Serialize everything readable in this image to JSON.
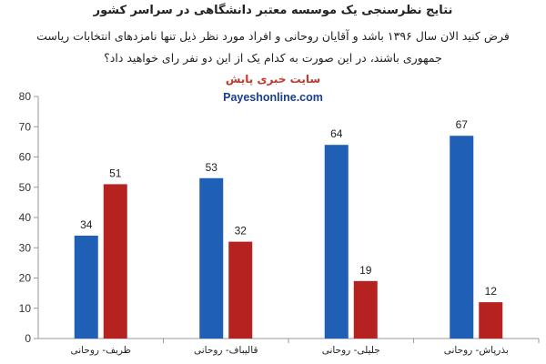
{
  "header": {
    "title": "نتایج نظرسنجی یک موسسه معتبر دانشگاهی در سراسر کشور",
    "question_line1": "فرض کنید الان سال ۱۳۹۶ باشد و آقایان روحانی و افراد مورد نظر ذیل تنها نامزدهای انتخابات ریاست",
    "question_line2": "جمهوری باشند، در این صورت به کدام یک از این دو نفر رای خواهید داد؟",
    "source": "سایت خبری پایش",
    "site": "Payeshonline.com"
  },
  "colors": {
    "series_blue": "#1f5fb5",
    "series_red": "#b5221f",
    "axis": "#999999"
  },
  "chart_data": {
    "type": "bar",
    "categories": [
      "ظریف- روحانی",
      "قالیباف- روحانی",
      "جلیلی- روحانی",
      "بذرپاش- روحانی"
    ],
    "series": [
      {
        "values": [
          34,
          53,
          64,
          67
        ]
      },
      {
        "values": [
          51,
          32,
          19,
          12
        ]
      }
    ],
    "yticks": [
      "0",
      "10",
      "20",
      "30",
      "40",
      "50",
      "60",
      "70",
      "80"
    ],
    "ylim": [
      0,
      80
    ],
    "grid": false,
    "legend": "none"
  }
}
